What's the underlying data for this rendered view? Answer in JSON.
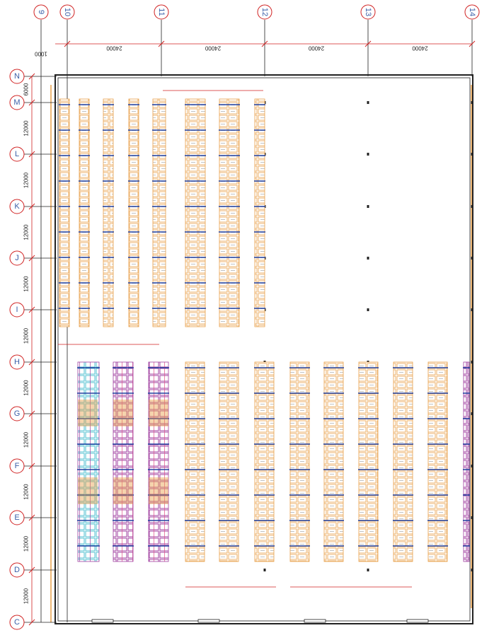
{
  "grid": {
    "columns": [
      "9",
      "10",
      "11",
      "12",
      "13",
      "14"
    ],
    "rows": [
      "N",
      "M",
      "L",
      "K",
      "J",
      "I",
      "H",
      "G",
      "F",
      "E",
      "D",
      "C"
    ]
  },
  "dimensions": {
    "top": [
      "24000",
      "24000",
      "24000",
      "24000"
    ],
    "top_offset": "1000",
    "left": [
      "6000",
      "12000",
      "12000",
      "12000",
      "12000",
      "12000",
      "12000",
      "12000",
      "12000",
      "12000",
      "12000"
    ]
  }
}
